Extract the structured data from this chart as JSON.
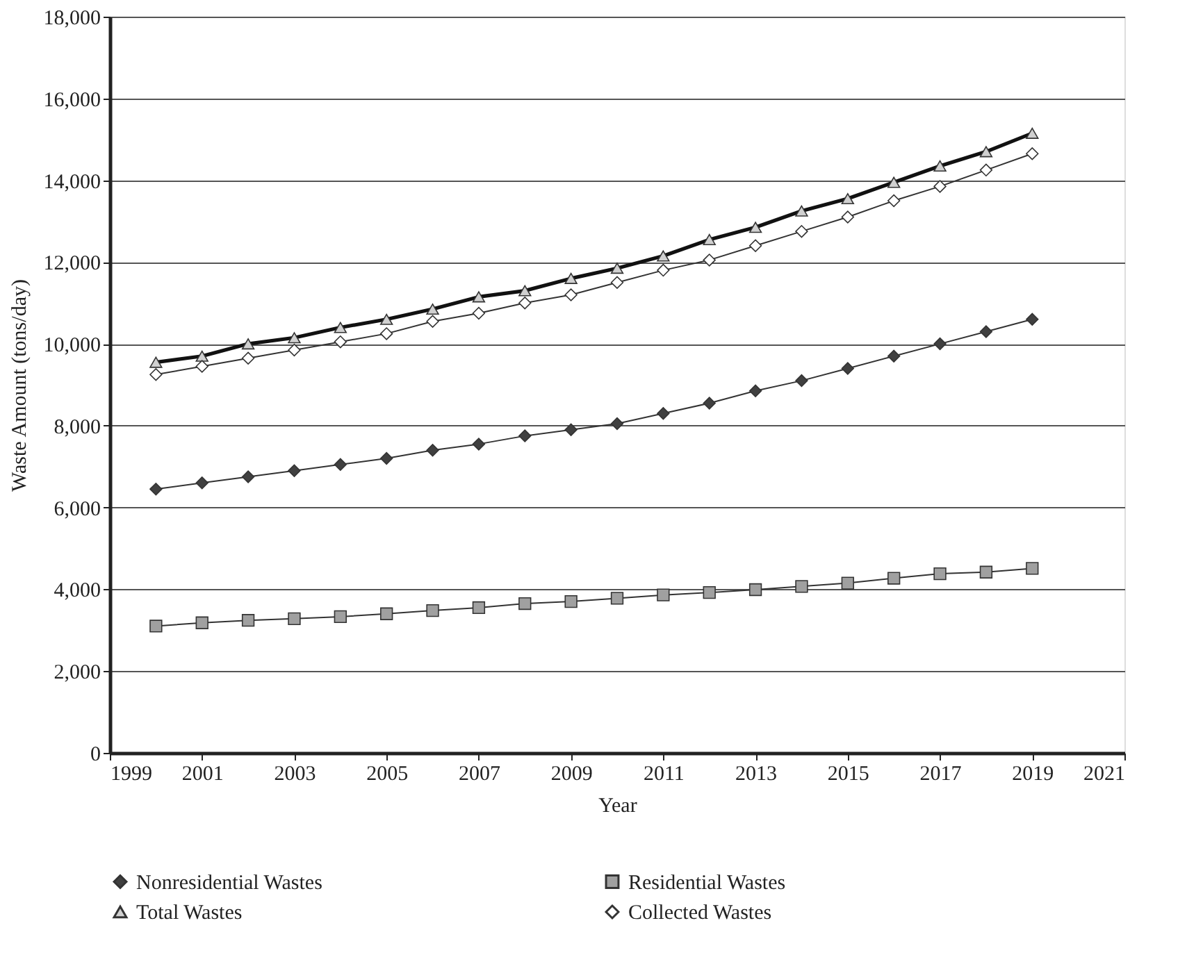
{
  "chart_data": {
    "type": "line",
    "xlabel": "Year",
    "ylabel": "Waste Amount (tons/day)",
    "x": [
      2000,
      2001,
      2002,
      2003,
      2004,
      2005,
      2006,
      2007,
      2008,
      2009,
      2010,
      2011,
      2012,
      2013,
      2014,
      2015,
      2016,
      2017,
      2018,
      2019
    ],
    "xlim": [
      1999,
      2021
    ],
    "xticks": [
      1999,
      2001,
      2003,
      2005,
      2007,
      2009,
      2011,
      2013,
      2015,
      2017,
      2019,
      2021
    ],
    "ylim": [
      0,
      18000
    ],
    "yticks": [
      {
        "value": 0,
        "label": "0"
      },
      {
        "value": 2000,
        "label": "2,000"
      },
      {
        "value": 4000,
        "label": "4,000"
      },
      {
        "value": 6000,
        "label": "6,000"
      },
      {
        "value": 8000,
        "label": "8,000"
      },
      {
        "value": 10000,
        "label": "10,000"
      },
      {
        "value": 12000,
        "label": "12,000"
      },
      {
        "value": 14000,
        "label": "14,000"
      },
      {
        "value": 16000,
        "label": "16,000"
      },
      {
        "value": 18000,
        "label": "18,000"
      }
    ],
    "grid": "y",
    "legend": "bottom",
    "series": [
      {
        "name": "Nonresidential Wastes",
        "color": "#404040",
        "marker": "diamond",
        "values": [
          6450,
          6600,
          6750,
          6900,
          7050,
          7200,
          7400,
          7550,
          7750,
          7900,
          8050,
          8300,
          8550,
          8850,
          9100,
          9400,
          9700,
          10000,
          10300,
          10600
        ]
      },
      {
        "name": "Residential Wastes",
        "color": "#a0a0a0",
        "marker": "square",
        "values": [
          3100,
          3180,
          3240,
          3280,
          3330,
          3400,
          3480,
          3550,
          3650,
          3700,
          3780,
          3860,
          3920,
          3990,
          4070,
          4150,
          4270,
          4380,
          4420,
          4510
        ]
      },
      {
        "name": "Total Wastes",
        "color": "#d0d0d0",
        "marker": "triangle",
        "values": [
          9550,
          9700,
          10000,
          10150,
          10400,
          10600,
          10850,
          11150,
          11300,
          11600,
          11850,
          12150,
          12550,
          12850,
          13250,
          13550,
          13950,
          14350,
          14700,
          15150
        ]
      },
      {
        "name": "Collected Wastes",
        "color": "#ffffff",
        "marker": "diamond",
        "values": [
          9250,
          9450,
          9650,
          9850,
          10050,
          10250,
          10550,
          10750,
          11000,
          11200,
          11500,
          11800,
          12050,
          12400,
          12750,
          13100,
          13500,
          13850,
          14250,
          14650
        ]
      }
    ]
  }
}
